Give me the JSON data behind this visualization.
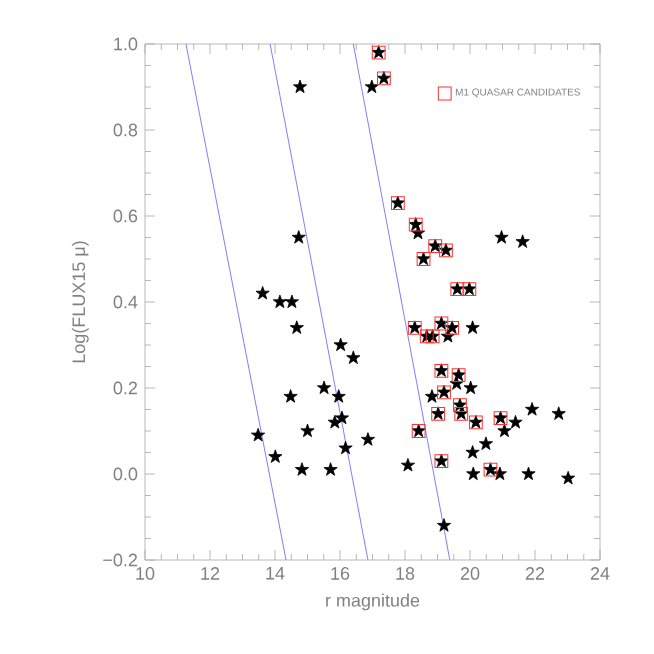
{
  "chart_data": {
    "type": "scatter",
    "xlabel": "r magnitude",
    "ylabel": "Log(FLUX15 μ)",
    "xlim": [
      10,
      24
    ],
    "ylim": [
      -0.2,
      1.0
    ],
    "xticks": [
      10,
      12,
      14,
      16,
      18,
      20,
      22,
      24
    ],
    "yticks": [
      {
        "value": -0.2,
        "label": "−0.2"
      },
      {
        "value": 0,
        "label": "0.0"
      },
      {
        "value": 0.2,
        "label": "0.2"
      },
      {
        "value": 0.4,
        "label": "0.4"
      },
      {
        "value": 0.6,
        "label": "0.6"
      },
      {
        "value": 0.8,
        "label": "0.8"
      },
      {
        "value": 1.0,
        "label": "1.0"
      }
    ],
    "legend": "top right",
    "grid": false,
    "series": [
      {
        "marker": "star",
        "color": "#000000",
        "x": [
          17.19,
          17.35,
          16.98,
          14.77,
          17.78,
          14.73,
          13.62,
          14.15,
          14.52,
          18.33,
          18.4,
          18.93,
          19.26,
          18.57,
          20.97,
          21.62,
          19.61,
          19.98,
          18.3,
          19.12,
          19.45,
          18.67,
          18.85,
          19.32,
          20.08,
          19.12,
          19.65,
          19.59,
          20.02,
          19.2,
          18.83,
          19.69,
          19.73,
          19.02,
          20.18,
          20.94,
          21.06,
          21.4,
          21.91,
          22.73,
          18.42,
          20.49,
          20.08,
          19.12,
          18.09,
          20.1,
          20.63,
          20.92,
          21.8,
          23.02,
          19.2,
          16.02,
          16.41,
          14.67,
          15.51,
          14.48,
          15.96,
          16.06,
          15.84,
          13.48,
          15.0,
          16.86,
          16.17,
          14.01,
          14.83,
          15.71
        ],
        "values": [
          0.98,
          0.92,
          0.9,
          0.9,
          0.63,
          0.55,
          0.42,
          0.4,
          0.4,
          0.58,
          0.56,
          0.53,
          0.52,
          0.5,
          0.55,
          0.54,
          0.43,
          0.43,
          0.34,
          0.35,
          0.34,
          0.32,
          0.32,
          0.32,
          0.34,
          0.24,
          0.23,
          0.21,
          0.2,
          0.19,
          0.18,
          0.16,
          0.14,
          0.14,
          0.12,
          0.13,
          0.1,
          0.12,
          0.15,
          0.14,
          0.1,
          0.07,
          0.05,
          0.03,
          0.02,
          0.0,
          0.01,
          0.0,
          0.0,
          -0.01,
          -0.12,
          0.3,
          0.27,
          0.34,
          0.2,
          0.18,
          0.18,
          0.13,
          0.12,
          0.09,
          0.1,
          0.08,
          0.06,
          0.04,
          0.01,
          0.01
        ]
      },
      {
        "name": "M1 QUASAR CANDIDATES",
        "marker": "square",
        "color": "#ff3030",
        "x": [
          17.19,
          17.35,
          17.78,
          18.33,
          18.93,
          19.26,
          18.57,
          19.61,
          19.98,
          18.3,
          19.12,
          19.45,
          18.67,
          18.85,
          19.12,
          19.65,
          19.2,
          19.69,
          19.73,
          19.02,
          20.18,
          20.94,
          18.42,
          19.12,
          20.63
        ],
        "values": [
          0.98,
          0.92,
          0.63,
          0.58,
          0.53,
          0.52,
          0.5,
          0.43,
          0.43,
          0.34,
          0.35,
          0.34,
          0.32,
          0.32,
          0.24,
          0.23,
          0.19,
          0.16,
          0.14,
          0.14,
          0.12,
          0.13,
          0.1,
          0.03,
          0.01
        ]
      },
      {
        "type": "line",
        "color": "#8080ff",
        "x": [
          11.26,
          14.34
        ],
        "values": [
          1.0,
          -0.2
        ]
      },
      {
        "type": "line",
        "color": "#8080ff",
        "x": [
          13.85,
          16.86
        ],
        "values": [
          1.0,
          -0.2
        ]
      },
      {
        "type": "line",
        "color": "#8080ff",
        "x": [
          16.41,
          19.38
        ],
        "values": [
          1.0,
          -0.2
        ]
      }
    ]
  }
}
